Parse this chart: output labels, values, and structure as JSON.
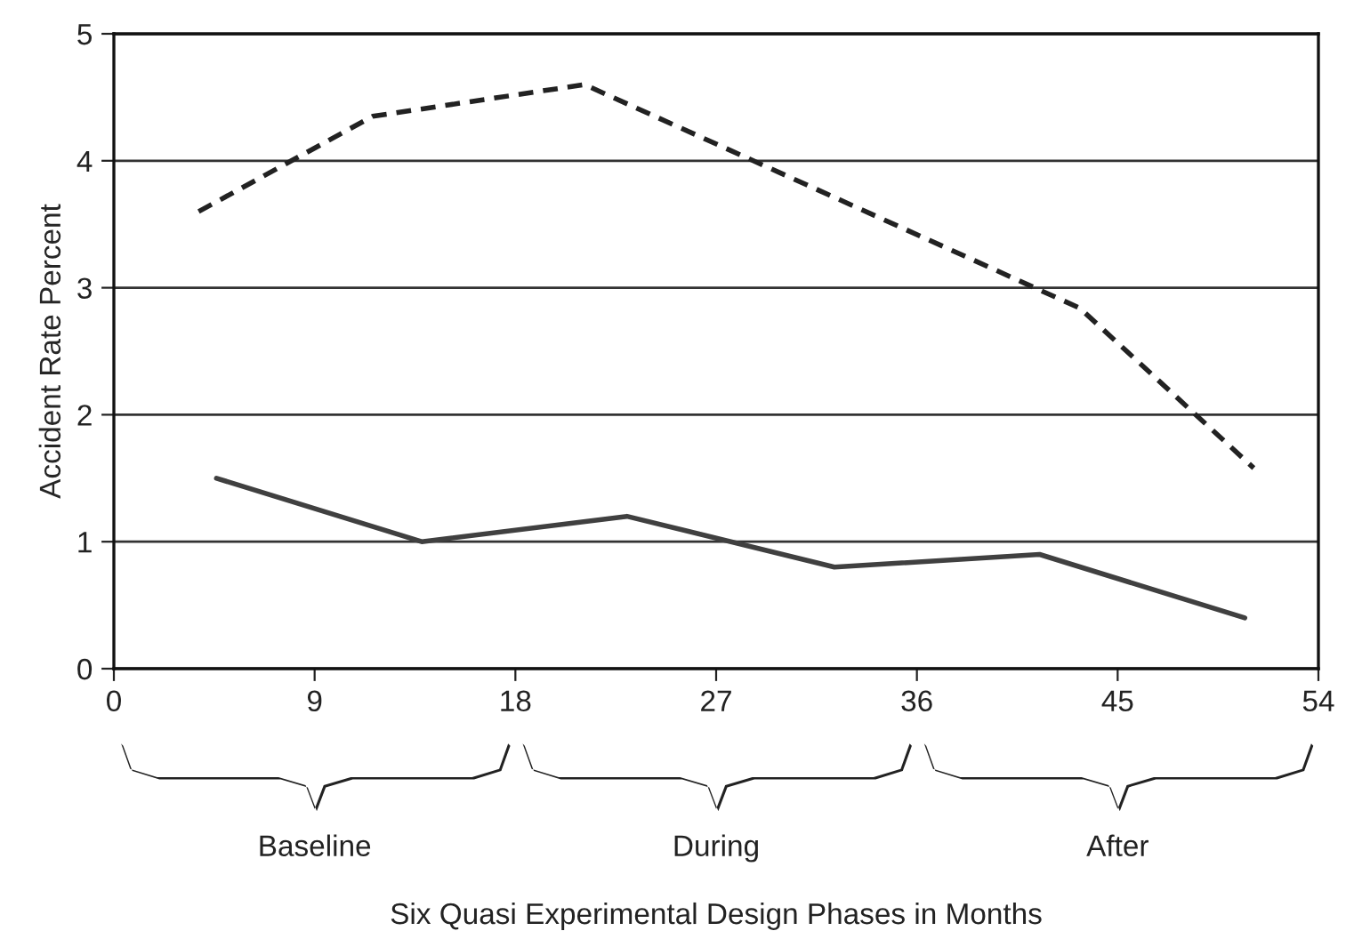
{
  "chart_data": {
    "type": "line",
    "ylabel": "Accident Rate Percent",
    "series": [
      {
        "color": "#222222",
        "line_style": "dashed",
        "x": [
          3.8,
          11.6,
          21.1,
          43.3,
          51.1
        ],
        "values": [
          3.6,
          4.35,
          4.6,
          2.84,
          1.58
        ]
      },
      {
        "color": "#404040",
        "line_style": "solid",
        "x": [
          4.6,
          13.8,
          23,
          32.3,
          41.5,
          50.7
        ],
        "values": [
          1.5,
          1.0,
          1.2,
          0.8,
          0.9,
          0.4
        ]
      }
    ],
    "xlim": [
      0,
      54
    ],
    "xticks": [
      0,
      9,
      18,
      27,
      36,
      45,
      54
    ],
    "ylim": [
      0,
      5
    ],
    "yticks": [
      0,
      1,
      2,
      3,
      4,
      5
    ],
    "grid": "y",
    "legend": false,
    "annotations": [
      "Baseline",
      "During",
      "After",
      "Six Quasi Experimental Design Phases in Months"
    ]
  }
}
